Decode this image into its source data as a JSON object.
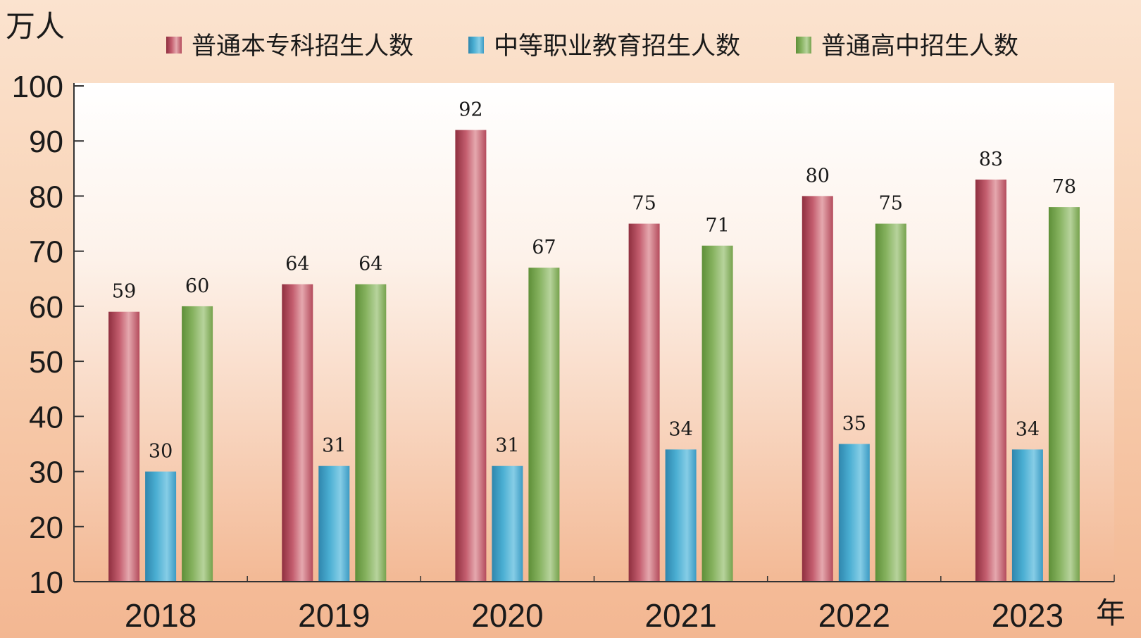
{
  "chart_data": {
    "type": "bar",
    "y_unit_label": "万人",
    "x_unit_label": "年",
    "categories": [
      "2018",
      "2019",
      "2020",
      "2021",
      "2022",
      "2023"
    ],
    "series": [
      {
        "name": "普通本专科招生人数",
        "values": [
          59,
          64,
          92,
          75,
          80,
          83
        ]
      },
      {
        "name": "中等职业教育招生人数",
        "values": [
          30,
          31,
          31,
          34,
          35,
          34
        ]
      },
      {
        "name": "普通高中招生人数",
        "values": [
          60,
          64,
          67,
          71,
          75,
          78
        ]
      }
    ],
    "ylim": [
      10,
      100
    ],
    "yticks": [
      10,
      20,
      30,
      40,
      50,
      60,
      70,
      80,
      90,
      100
    ],
    "grid": false,
    "legend_position": "top"
  },
  "colors": {
    "series": [
      "#b94b5c",
      "#3f9fc4",
      "#7faa57"
    ],
    "text": "#1a1a1a",
    "axis": "#333333"
  }
}
